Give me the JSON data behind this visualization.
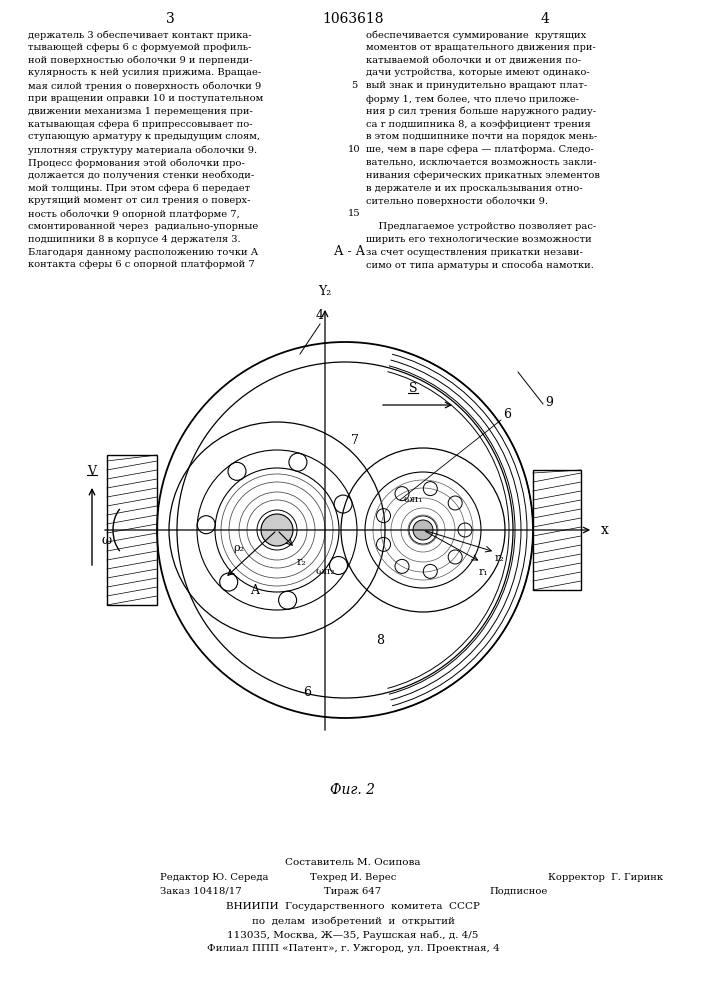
{
  "patent_number": "1063618",
  "page_left": "3",
  "page_right": "4",
  "text_left": "держатель 3 обеспечивает контакт прика-\nтывающей сферы 6 с формуемой профиль-\nной поверхностью оболочки 9 и перпенди-\nкулярность к ней усилия прижима. Вращае-\nмая силой трения о поверхность оболочки 9\nпри вращении оправки 10 и поступательном\nдвижении механизма 1 перемещения при-\nкатывающая сфера 6 припрессовывает по-\nступающую арматуру к предыдущим слоям,\nуплотняя структуру материала оболочки 9.\nПроцесс формования этой оболочки про-\nдолжается до получения стенки необходи-\nмой толщины. При этом сфера 6 передает\nкрутящий момент от сил трения о поверх-\nность оболочки 9 опорной платформе 7,\nсмонтированной через  радиально-упорные\nподшипники 8 в корпусе 4 держателя 3.\nБлагодаря данному расположению точки А\nконтакта сферы 6 с опорной платформой 7",
  "text_right": "обеспечивается суммирование  крутящих\nмоментов от вращательного движения при-\nкатываемой оболочки и от движения по-\nдачи устройства, которые имеют одинако-\nвый знак и принудительно вращают плат-\nформу 1, тем более, что плечо приложе-\nния р сил трения больше наружного радиу-\nса r подшипника 8, а коэффициент трения\nв этом подшипнике почти на порядок мень-\nше, чем в паре сфера — платформа. Следо-\nвательно, исключается возможность закли-\nнивания сферических прикатных элементов\nв держателе и их проскальзывания отно-\nсительно поверхности оболочки 9.\n\n    Предлагаемое устройство позволяет рас-\nширить его технологические возможности\nза счет осуществления прикатки незави-\nсимо от типа арматуры и способа намотки.",
  "fig_caption": "Фиг. 2",
  "section_label": "А - А",
  "footer_line1": "Составитель М. Осипова",
  "footer_line2_left": "Редактор Ю. Середа",
  "footer_line2_mid": "Техред И. Верес",
  "footer_line2_right": "Корректор  Г. Гиринк",
  "footer_line3_left": "Заказ 10418/17",
  "footer_line3_mid": "Тираж 647",
  "footer_line3_right": "Подписное",
  "footer_line4": "ВНИИПИ  Государственного  комитета  СССР",
  "footer_line5": "по  делам  изобретений  и  открытий",
  "footer_line6": "113035, Москва, Ж—35, Раушская наб., д. 4/5",
  "footer_line7": "Филиал ППП «Патент», г. Ужгород, ул. Проектная, 4",
  "bg_color": "#ffffff",
  "text_color": "#000000"
}
